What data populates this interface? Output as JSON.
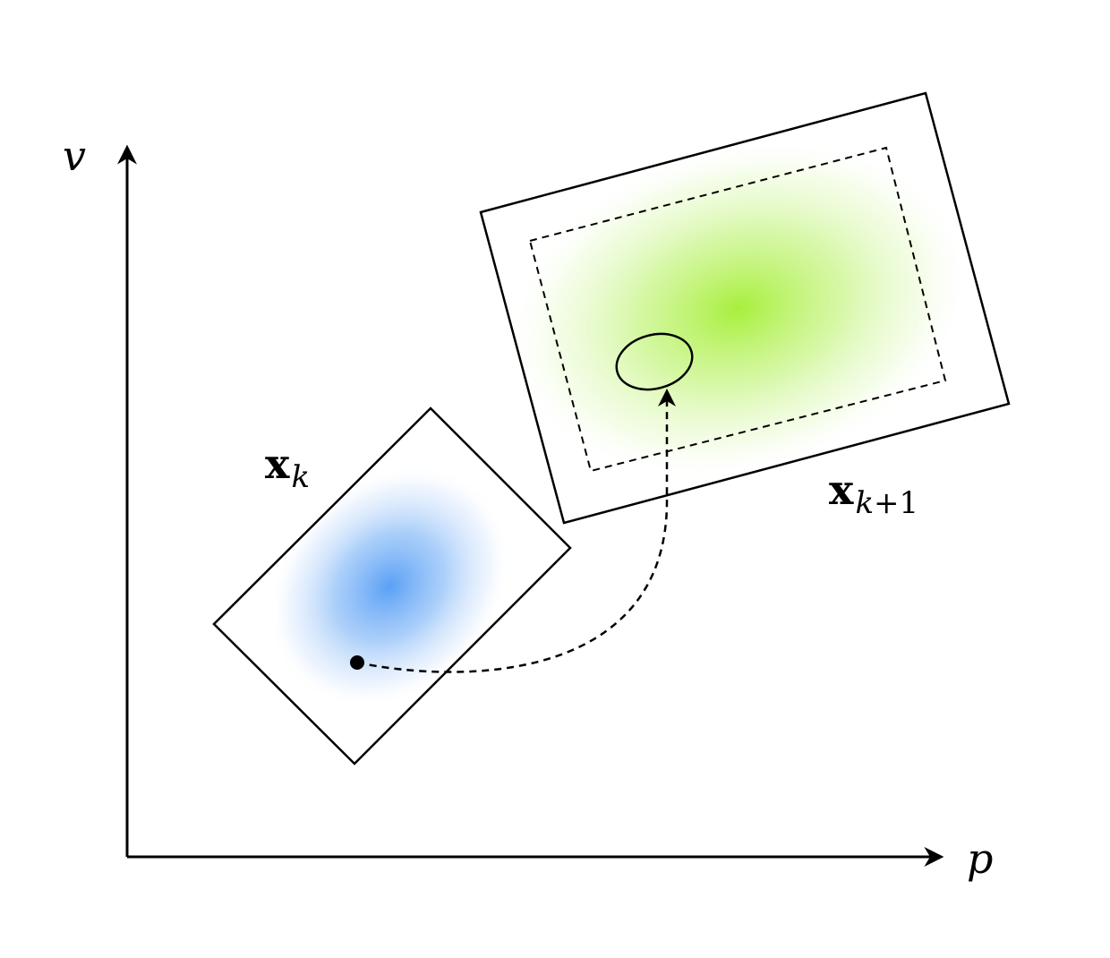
{
  "axes": {
    "x_label": "p",
    "y_label": "v"
  },
  "labels": {
    "state_k": {
      "main": "x",
      "sub": "k"
    },
    "state_k1": {
      "main": "x",
      "sub_var": "k",
      "sub_rest": "+1"
    }
  },
  "colors": {
    "blue_density": "#5aa0f5",
    "green_density": "#a8ef3c",
    "stroke": "#000000"
  }
}
